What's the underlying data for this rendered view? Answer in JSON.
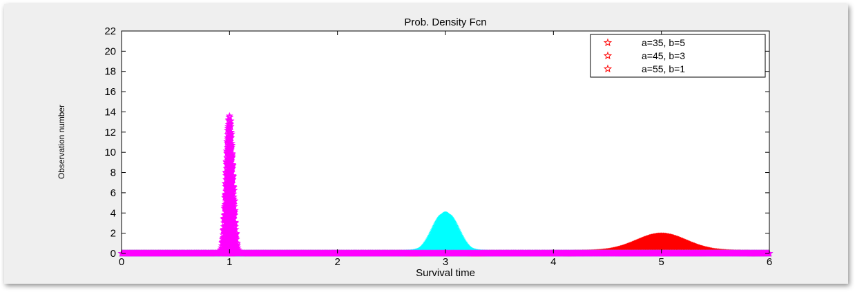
{
  "chart_data": {
    "type": "scatter",
    "title": "Prob. Density Fcn",
    "xlabel": "Survival time",
    "ylabel": "Observation number",
    "xlim": [
      0,
      6
    ],
    "ylim": [
      0,
      22
    ],
    "xticks": [
      0,
      1,
      2,
      3,
      4,
      5,
      6
    ],
    "yticks": [
      0,
      2,
      4,
      6,
      8,
      10,
      12,
      14,
      16,
      18,
      20,
      22
    ],
    "grid": false,
    "legend_position": "top-right",
    "legend": [
      {
        "label": "a=35, b=5",
        "marker": "pentagram",
        "color": "#ff0000"
      },
      {
        "label": "a=45, b=3",
        "marker": "pentagram",
        "color": "#ff0000"
      },
      {
        "label": "a=55, b=1",
        "marker": "pentagram",
        "color": "#ff0000"
      }
    ],
    "series": [
      {
        "color": "#ff0000",
        "marker": "pentagram",
        "peak_x": 5,
        "peak_y": 1.7,
        "sigma": 0.23
      },
      {
        "color": "#00ffff",
        "marker": "pentagram",
        "peak_x": 3,
        "peak_y": 3.8,
        "sigma": 0.105
      },
      {
        "color": "#ff00ff",
        "marker": "pentagram",
        "peak_x": 1,
        "peak_y": 13.6,
        "sigma": 0.03
      }
    ]
  }
}
